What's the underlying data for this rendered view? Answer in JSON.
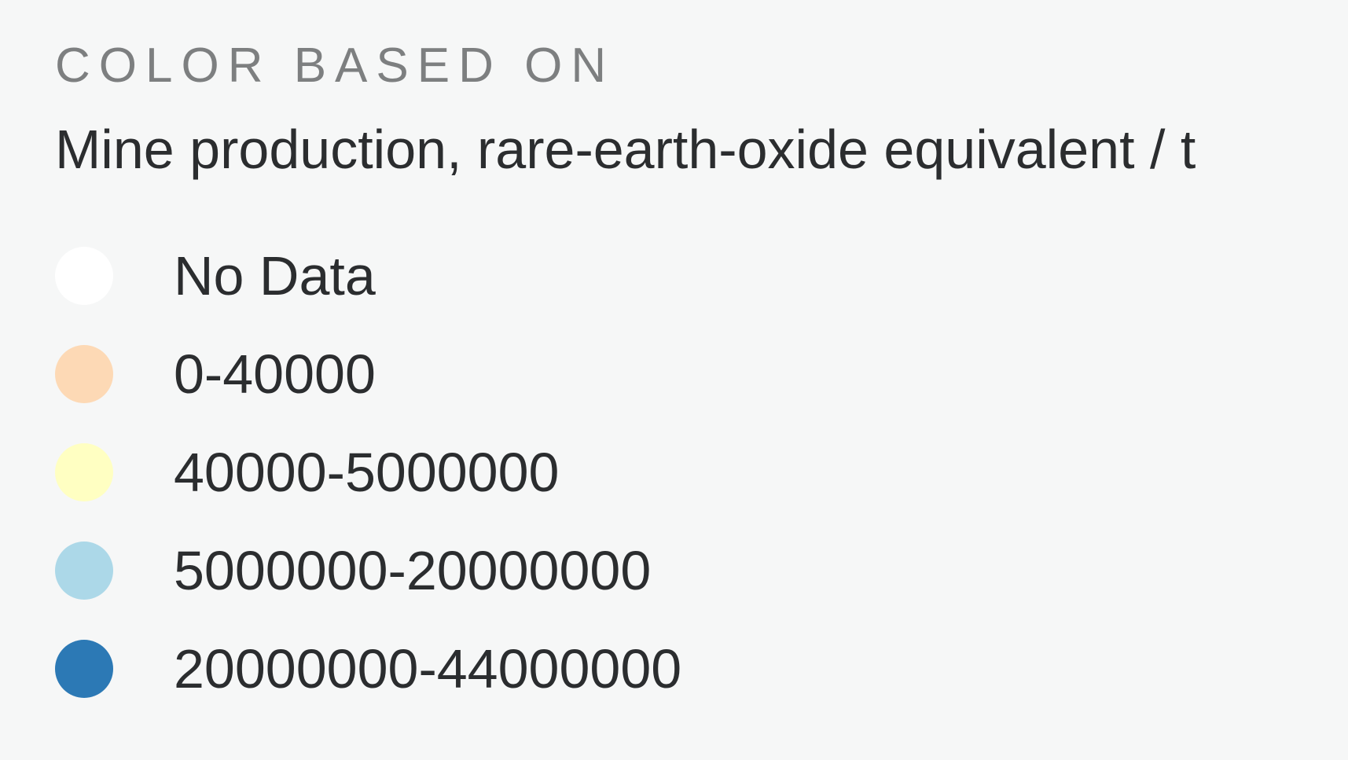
{
  "legend_panel": {
    "heading": "COLOR BASED ON",
    "metric": "Mine production, rare-earth-oxide equivalent / t",
    "items": [
      {
        "label": "No Data",
        "color": "#ffffff"
      },
      {
        "label": "0-40000",
        "color": "#fdd9b5"
      },
      {
        "label": "40000-5000000",
        "color": "#ffffc2"
      },
      {
        "label": "5000000-20000000",
        "color": "#acd8e8"
      },
      {
        "label": "20000000-44000000",
        "color": "#2c79b5"
      }
    ]
  }
}
